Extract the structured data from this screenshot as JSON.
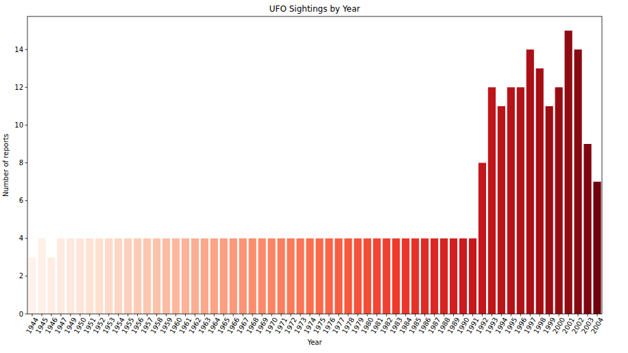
{
  "chart_data": {
    "type": "bar",
    "title": "UFO Sightings by Year",
    "x_label": "Year",
    "y_label": "Number of reports",
    "categories": [
      "1944",
      "1945",
      "1946",
      "1947",
      "1949",
      "1950",
      "1951",
      "1952",
      "1953",
      "1954",
      "1955",
      "1956",
      "1957",
      "1958",
      "1959",
      "1960",
      "1961",
      "1962",
      "1963",
      "1964",
      "1965",
      "1966",
      "1967",
      "1968",
      "1969",
      "1970",
      "1971",
      "1972",
      "1973",
      "1974",
      "1975",
      "1976",
      "1977",
      "1978",
      "1979",
      "1980",
      "1981",
      "1982",
      "1983",
      "1984",
      "1985",
      "1986",
      "1987",
      "1988",
      "1989",
      "1990",
      "1991",
      "1992",
      "1993",
      "1994",
      "1995",
      "1996",
      "1997",
      "1998",
      "1999",
      "2000",
      "2001",
      "2002",
      "2003",
      "2004"
    ],
    "values": [
      3,
      4,
      3,
      4,
      4,
      4,
      4,
      4,
      4,
      4,
      4,
      4,
      4,
      4,
      4,
      4,
      4,
      4,
      4,
      4,
      4,
      4,
      4,
      4,
      4,
      4,
      4,
      4,
      4,
      4,
      4,
      4,
      4,
      4,
      4,
      4,
      4,
      4,
      4,
      4,
      4,
      4,
      4,
      4,
      4,
      4,
      4,
      8,
      12,
      11,
      12,
      12,
      14,
      13,
      11,
      12,
      15,
      14,
      9,
      7
    ],
    "colors": [
      "#fff2ec",
      "#fff0e8",
      "#ffede4",
      "#feeae1",
      "#fee7dd",
      "#fee5d9",
      "#fee2d5",
      "#fedfd0",
      "#fedaca",
      "#fdd5c4",
      "#fdd0be",
      "#fdccb7",
      "#fdc7b1",
      "#fcc2aa",
      "#fcbda4",
      "#fcb89e",
      "#fcb398",
      "#fcae92",
      "#fca88c",
      "#fca386",
      "#fc9e80",
      "#fc997a",
      "#fc9374",
      "#fc8e6e",
      "#fc8969",
      "#fc8464",
      "#fb7f5f",
      "#fb7a5a",
      "#fb7454",
      "#fb6f4f",
      "#fb6a4a",
      "#f96446",
      "#f85e42",
      "#f6583e",
      "#f5523a",
      "#f34c37",
      "#f24633",
      "#f0402f",
      "#ee3a2b",
      "#e9352a",
      "#e53128",
      "#e02c26",
      "#db2824",
      "#d72322",
      "#d21f20",
      "#cd1a1e",
      "#c9171c",
      "#c4161b",
      "#bf151a",
      "#ba1419",
      "#b51318",
      "#b01217",
      "#ab1016",
      "#a60f15",
      "#9f0d14",
      "#970c13",
      "#8f0a12",
      "#870811",
      "#7f0610",
      "#6f020e"
    ],
    "ylim": [
      0,
      15.75
    ],
    "yticks": [
      0,
      2,
      4,
      6,
      8,
      10,
      12,
      14
    ],
    "grid": false
  }
}
